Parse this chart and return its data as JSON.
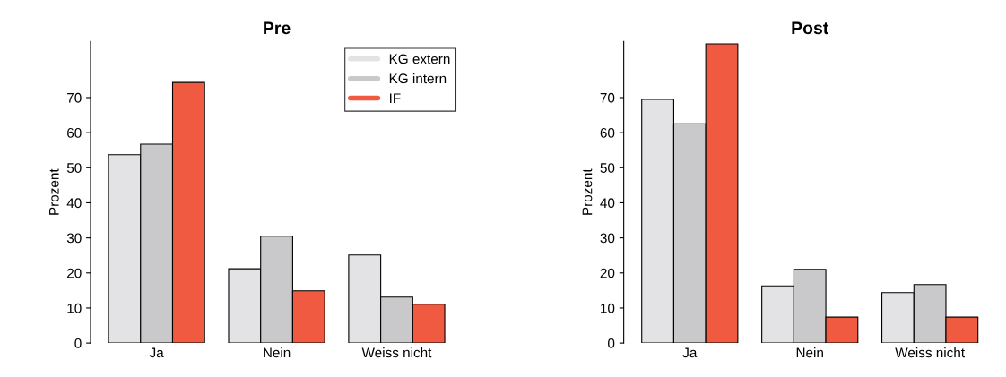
{
  "chart_data": [
    {
      "type": "bar",
      "title": "Pre",
      "ylabel": "Prozent",
      "categories": [
        "Ja",
        "Nein",
        "Weiss nicht"
      ],
      "ylim": [
        0,
        86
      ],
      "yticks": [
        0,
        10,
        20,
        30,
        40,
        50,
        60,
        70
      ],
      "grid": false,
      "legend": "top right",
      "series": [
        {
          "name": "KG extern",
          "color": "#e3e3e5",
          "values": [
            53.7,
            21.2,
            25.1
          ]
        },
        {
          "name": "KG intern",
          "color": "#c9c9cb",
          "values": [
            56.7,
            30.5,
            13.1
          ]
        },
        {
          "name": "IF",
          "color": "#f05a40",
          "values": [
            74.3,
            14.9,
            11.1
          ]
        }
      ]
    },
    {
      "type": "bar",
      "title": "Post",
      "ylabel": "Prozent",
      "categories": [
        "Ja",
        "Nein",
        "Weiss nicht"
      ],
      "ylim": [
        0,
        86
      ],
      "yticks": [
        0,
        10,
        20,
        30,
        40,
        50,
        60,
        70
      ],
      "grid": false,
      "series": [
        {
          "color": "#e3e3e5",
          "values": [
            69.5,
            16.3,
            14.4
          ]
        },
        {
          "color": "#c9c9cb",
          "values": [
            62.5,
            21.0,
            16.7
          ]
        },
        {
          "color": "#f05a40",
          "values": [
            85.3,
            7.4,
            7.4
          ]
        }
      ]
    }
  ]
}
